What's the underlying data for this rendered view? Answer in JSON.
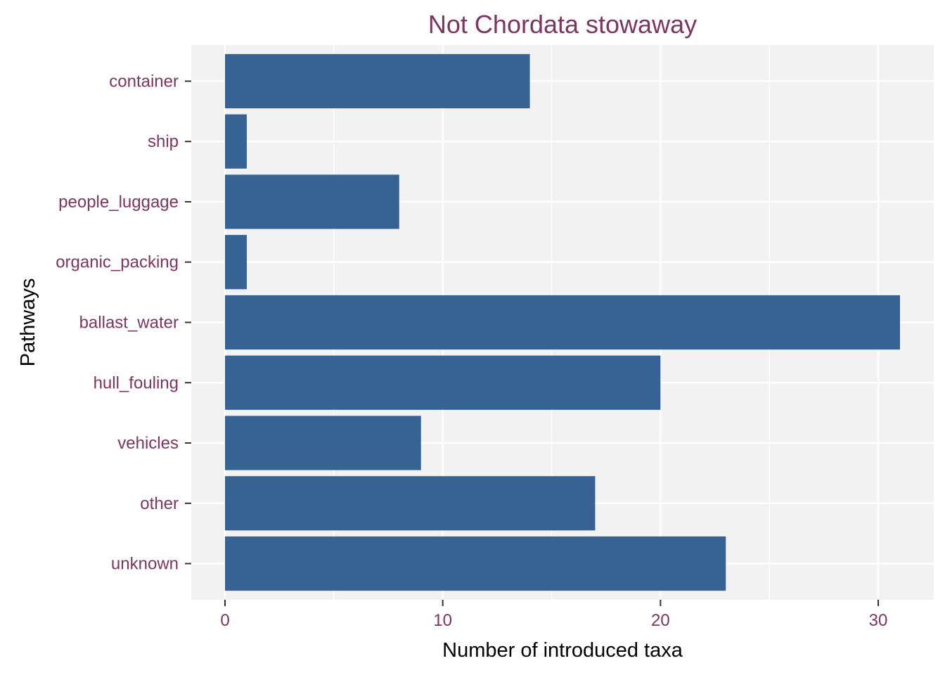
{
  "colors": {
    "bar": "#376294",
    "panel_background": "#f2f2f2",
    "grid": "#ffffff",
    "label_text": "#7d3560",
    "axis_title_text": "#000000",
    "tick_mark": "#333333"
  },
  "chart_data": {
    "type": "bar",
    "orientation": "horizontal",
    "title": "Not Chordata stowaway",
    "xlabel": "Number of introduced taxa",
    "ylabel": "Pathways",
    "categories": [
      "container",
      "ship",
      "people_luggage",
      "organic_packing",
      "ballast_water",
      "hull_fouling",
      "vehicles",
      "other",
      "unknown"
    ],
    "values": [
      14,
      1,
      8,
      1,
      31,
      20,
      9,
      17,
      23
    ],
    "xlim": [
      -1.55,
      32.55
    ],
    "x_ticks": [
      0,
      10,
      20,
      30
    ],
    "x_tick_labels": [
      "0",
      "10",
      "20",
      "30"
    ],
    "grid": true,
    "legend": "none"
  }
}
